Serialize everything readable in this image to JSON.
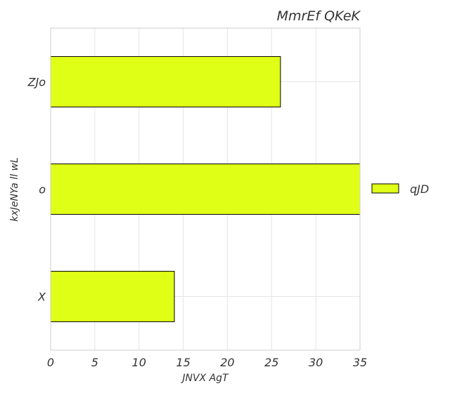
{
  "chart_data": {
    "type": "bar",
    "orientation": "horizontal",
    "title": "MmrEf QKeK",
    "xlabel": "JNVX AgT",
    "ylabel": "kxJeNYa ll wL",
    "categories": [
      "ZJo",
      "o",
      "X"
    ],
    "series": [
      {
        "name": "qJD",
        "values": [
          26,
          35,
          14
        ]
      }
    ],
    "xlim": [
      0,
      35
    ],
    "xticks": [
      0,
      5,
      10,
      15,
      20,
      25,
      30,
      35
    ],
    "grid": true,
    "legend": "right",
    "colors": {
      "bar": "#e0ff16",
      "edge": "#000000",
      "grid": "#e5e5e5",
      "frame": "#cccccc"
    }
  }
}
